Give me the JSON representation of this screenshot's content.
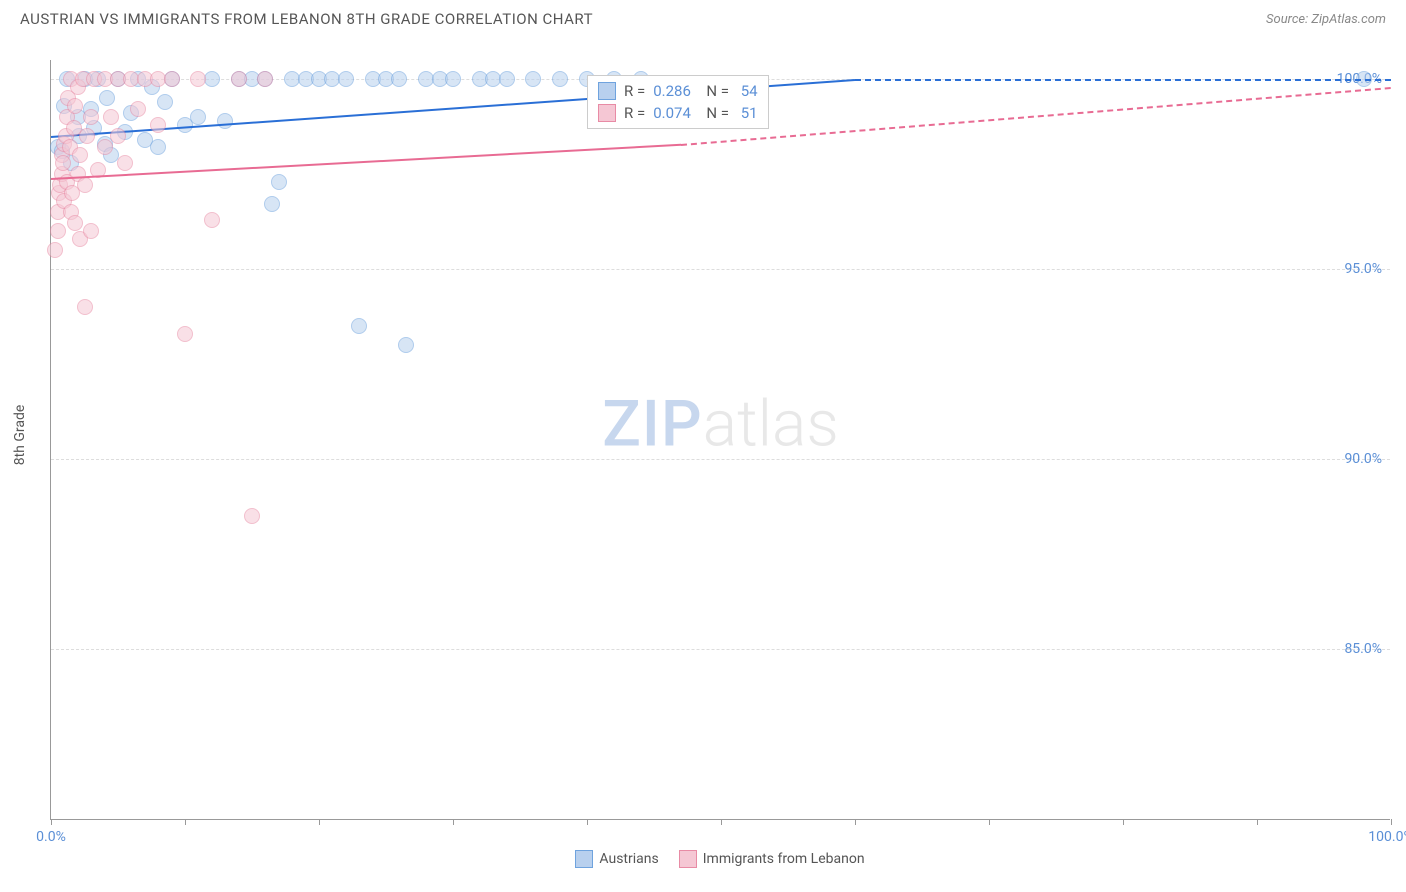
{
  "title": "AUSTRIAN VS IMMIGRANTS FROM LEBANON 8TH GRADE CORRELATION CHART",
  "source_label": "Source: ZipAtlas.com",
  "y_axis_label": "8th Grade",
  "watermark_zip": "ZIP",
  "watermark_atlas": "atlas",
  "chart": {
    "type": "scatter",
    "background_color": "#ffffff",
    "grid_color": "#dddddd",
    "axis_color": "#999999",
    "xlim": [
      0,
      100
    ],
    "ylim": [
      80.5,
      100.5
    ],
    "x_ticks": [
      0,
      10,
      20,
      30,
      40,
      50,
      60,
      70,
      80,
      90,
      100
    ],
    "x_tick_labels": {
      "0": "0.0%",
      "100": "100.0%"
    },
    "x_tick_label_color": "#5b8fd6",
    "y_gridlines": [
      85,
      90,
      95,
      100
    ],
    "y_tick_labels": {
      "85": "85.0%",
      "90": "90.0%",
      "95": "95.0%",
      "100": "100.0%"
    },
    "y_tick_label_color": "#5b8fd6",
    "marker_radius": 8,
    "marker_stroke_width": 1.5,
    "series": [
      {
        "name": "Austrians",
        "fill": "#b8d0ee",
        "stroke": "#6fa3de",
        "fill_opacity": 0.55,
        "r_value": "0.286",
        "n_value": "54",
        "trend": {
          "x1": 0,
          "y1": 98.5,
          "x2": 60,
          "y2": 100.0,
          "dash_to_x": 100,
          "dash_to_y": 100.0,
          "color": "#2a6fd6",
          "width": 2
        },
        "points": [
          [
            0.5,
            98.2
          ],
          [
            0.8,
            98.1
          ],
          [
            1,
            99.3
          ],
          [
            1.2,
            100
          ],
          [
            1.5,
            97.8
          ],
          [
            2,
            99.0
          ],
          [
            2.1,
            98.5
          ],
          [
            2.5,
            100
          ],
          [
            3,
            99.2
          ],
          [
            3.2,
            98.7
          ],
          [
            3.5,
            100
          ],
          [
            4,
            98.3
          ],
          [
            4.2,
            99.5
          ],
          [
            4.5,
            98.0
          ],
          [
            5,
            100
          ],
          [
            5.5,
            98.6
          ],
          [
            6,
            99.1
          ],
          [
            6.5,
            100
          ],
          [
            7,
            98.4
          ],
          [
            7.5,
            99.8
          ],
          [
            8,
            98.2
          ],
          [
            8.5,
            99.4
          ],
          [
            9,
            100
          ],
          [
            10,
            98.8
          ],
          [
            11,
            99.0
          ],
          [
            12,
            100
          ],
          [
            13,
            98.9
          ],
          [
            14,
            100
          ],
          [
            15,
            100
          ],
          [
            16,
            100
          ],
          [
            17,
            97.3
          ],
          [
            18,
            100
          ],
          [
            19,
            100
          ],
          [
            20,
            100
          ],
          [
            21,
            100
          ],
          [
            22,
            100
          ],
          [
            16.5,
            96.7
          ],
          [
            23,
            93.5
          ],
          [
            24,
            100
          ],
          [
            25,
            100
          ],
          [
            26,
            100
          ],
          [
            26.5,
            93.0
          ],
          [
            28,
            100
          ],
          [
            29,
            100
          ],
          [
            30,
            100
          ],
          [
            32,
            100
          ],
          [
            33,
            100
          ],
          [
            34,
            100
          ],
          [
            36,
            100
          ],
          [
            38,
            100
          ],
          [
            40,
            100
          ],
          [
            42,
            100
          ],
          [
            44,
            100
          ],
          [
            98,
            100
          ]
        ]
      },
      {
        "name": "Immigrants from Lebanon",
        "fill": "#f5c7d4",
        "stroke": "#e88ba5",
        "fill_opacity": 0.55,
        "r_value": "0.074",
        "n_value": "51",
        "trend": {
          "x1": 0,
          "y1": 97.4,
          "x2": 47,
          "y2": 98.3,
          "dash_to_x": 100,
          "dash_to_y": 99.8,
          "color": "#e86b93",
          "width": 2
        },
        "points": [
          [
            0.3,
            95.5
          ],
          [
            0.5,
            96.0
          ],
          [
            0.5,
            96.5
          ],
          [
            0.6,
            97.0
          ],
          [
            0.7,
            97.2
          ],
          [
            0.8,
            97.5
          ],
          [
            0.8,
            98.0
          ],
          [
            0.9,
            97.8
          ],
          [
            1,
            98.3
          ],
          [
            1,
            96.8
          ],
          [
            1.1,
            98.5
          ],
          [
            1.2,
            99.0
          ],
          [
            1.2,
            97.3
          ],
          [
            1.3,
            99.5
          ],
          [
            1.4,
            98.2
          ],
          [
            1.5,
            100
          ],
          [
            1.5,
            96.5
          ],
          [
            1.6,
            97.0
          ],
          [
            1.7,
            98.7
          ],
          [
            1.8,
            99.3
          ],
          [
            1.8,
            96.2
          ],
          [
            2,
            99.8
          ],
          [
            2,
            97.5
          ],
          [
            2.2,
            98.0
          ],
          [
            2.2,
            95.8
          ],
          [
            2.4,
            100
          ],
          [
            2.5,
            97.2
          ],
          [
            2.5,
            94.0
          ],
          [
            2.7,
            98.5
          ],
          [
            3,
            99.0
          ],
          [
            3,
            96.0
          ],
          [
            3.2,
            100
          ],
          [
            3.5,
            97.6
          ],
          [
            4,
            98.2
          ],
          [
            4,
            100
          ],
          [
            4.5,
            99.0
          ],
          [
            5,
            98.5
          ],
          [
            5,
            100
          ],
          [
            5.5,
            97.8
          ],
          [
            6,
            100
          ],
          [
            6.5,
            99.2
          ],
          [
            7,
            100
          ],
          [
            8,
            98.8
          ],
          [
            8,
            100
          ],
          [
            9,
            100
          ],
          [
            10,
            93.3
          ],
          [
            11,
            100
          ],
          [
            12,
            96.3
          ],
          [
            14,
            100
          ],
          [
            15,
            88.5
          ],
          [
            16,
            100
          ]
        ]
      }
    ],
    "stats_box": {
      "left_pct": 40,
      "top_y": 100.1
    },
    "legend": {
      "series1_label": "Austrians",
      "series2_label": "Immigrants from Lebanon"
    }
  }
}
